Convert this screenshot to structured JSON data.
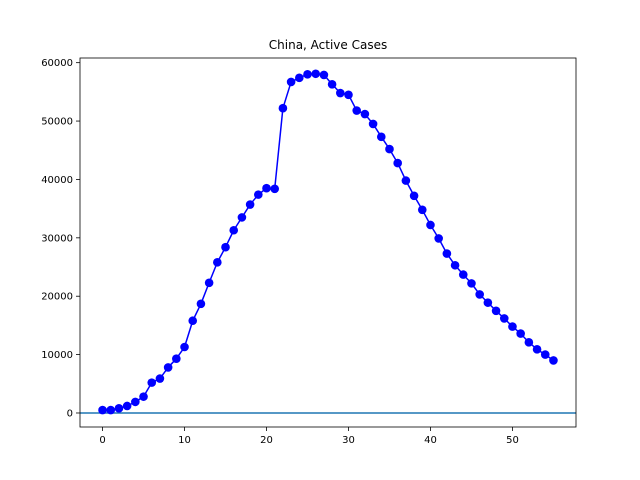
{
  "chart_data": {
    "type": "line",
    "title": "China, Active Cases",
    "xlabel": "",
    "ylabel": "",
    "xlim": [
      -2.75,
      57.75
    ],
    "ylim": [
      -2400,
      60800
    ],
    "xticks": [
      0,
      10,
      20,
      30,
      40,
      50
    ],
    "yticks": [
      0,
      10000,
      20000,
      30000,
      40000,
      50000,
      60000
    ],
    "grid": false,
    "series": [
      {
        "color": "#0000ff",
        "marker": "circle",
        "x": [
          0,
          1,
          2,
          3,
          4,
          5,
          6,
          7,
          8,
          9,
          10,
          11,
          12,
          13,
          14,
          15,
          16,
          17,
          18,
          19,
          20,
          21,
          22,
          23,
          24,
          25,
          26,
          27,
          28,
          29,
          30,
          31,
          32,
          33,
          34,
          35,
          36,
          37,
          38,
          39,
          40,
          41,
          42,
          43,
          44,
          45,
          46,
          47,
          48,
          49,
          50,
          51,
          52,
          53,
          54,
          55
        ],
        "values": [
          500,
          500,
          800,
          1200,
          1900,
          2800,
          5200,
          5900,
          7800,
          9300,
          11300,
          15800,
          18700,
          22300,
          25800,
          28400,
          31300,
          33500,
          35700,
          37400,
          38500,
          38400,
          52200,
          56700,
          57400,
          58000,
          58100,
          57900,
          56300,
          54800,
          54500,
          51800,
          51200,
          49500,
          47300,
          45200,
          42800,
          39800,
          37200,
          34800,
          32200,
          29900,
          27300,
          25300,
          23700,
          22200,
          20300,
          18900,
          17500,
          16200,
          14800,
          13600,
          12100,
          10900,
          10000,
          9000
        ]
      }
    ],
    "reference_line": {
      "y": 0,
      "color": "#1f77b4"
    }
  }
}
